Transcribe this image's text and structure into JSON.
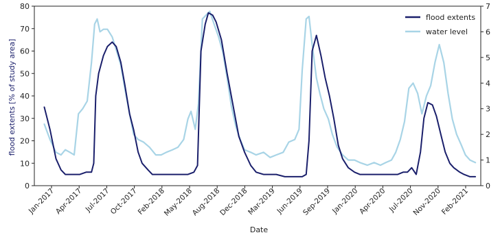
{
  "chart_data": {
    "type": "line",
    "xlabel": "Date",
    "ylabel_left": "flood extents [% of study area]",
    "ylabel_right": "",
    "ylim_left": [
      0,
      80
    ],
    "ylim_right": [
      0,
      7
    ],
    "yticks_left": [
      "0",
      "10",
      "20",
      "30",
      "40",
      "50",
      "60",
      "70",
      "80"
    ],
    "yticks_right": [
      "0",
      "1",
      "2",
      "3",
      "4",
      "5",
      "6",
      "7"
    ],
    "xticks": [
      "Jan-2017",
      "Apr-2017",
      "Jul-2017",
      "Oct-2017",
      "Feb-2018",
      "May-2018",
      "Aug-2018",
      "Dec-2018",
      "Mar-2019",
      "Jun-2019",
      "Sep-2019",
      "Jan-2020",
      "Apr-2020",
      "Jul-2020",
      "Nov-2020",
      "Feb-2021"
    ],
    "legend_position": "top-right",
    "colors": {
      "flood": "#1a1f6b",
      "water": "#a8d4e6",
      "axis": "#222222",
      "left_label": "#1a1f6b"
    },
    "series": [
      {
        "name": "flood extents",
        "axis": "left",
        "x": [
          "2017-01-05",
          "2017-01-25",
          "2017-02-15",
          "2017-03-05",
          "2017-03-20",
          "2017-04-05",
          "2017-04-20",
          "2017-05-10",
          "2017-06-01",
          "2017-06-20",
          "2017-06-28",
          "2017-07-05",
          "2017-07-15",
          "2017-08-01",
          "2017-08-15",
          "2017-09-01",
          "2017-09-15",
          "2017-10-01",
          "2017-10-15",
          "2017-11-01",
          "2017-11-15",
          "2017-12-01",
          "2017-12-15",
          "2018-01-05",
          "2018-01-20",
          "2018-02-10",
          "2018-03-01",
          "2018-03-20",
          "2018-04-10",
          "2018-05-01",
          "2018-05-25",
          "2018-06-15",
          "2018-06-28",
          "2018-07-10",
          "2018-07-25",
          "2018-08-05",
          "2018-08-20",
          "2018-09-01",
          "2018-09-20",
          "2018-10-10",
          "2018-11-01",
          "2018-11-20",
          "2018-12-10",
          "2019-01-01",
          "2019-01-20",
          "2019-02-15",
          "2019-03-10",
          "2019-04-01",
          "2019-05-01",
          "2019-06-01",
          "2019-07-01",
          "2019-07-15",
          "2019-07-25",
          "2019-08-05",
          "2019-08-20",
          "2019-09-05",
          "2019-09-20",
          "2019-10-05",
          "2019-10-20",
          "2019-11-05",
          "2019-11-20",
          "2019-12-10",
          "2020-01-01",
          "2020-01-20",
          "2020-02-15",
          "2020-03-10",
          "2020-04-01",
          "2020-05-01",
          "2020-06-01",
          "2020-06-20",
          "2020-07-05",
          "2020-07-20",
          "2020-08-05",
          "2020-08-20",
          "2020-09-01",
          "2020-09-15",
          "2020-10-01",
          "2020-10-15",
          "2020-11-01",
          "2020-11-15",
          "2020-12-01",
          "2020-12-15",
          "2021-01-05",
          "2021-01-20",
          "2021-02-10",
          "2021-03-01"
        ],
        "y": [
          35,
          25,
          12,
          7,
          5,
          5,
          5,
          5,
          6,
          6,
          10,
          40,
          50,
          58,
          62,
          64,
          62,
          55,
          45,
          32,
          25,
          15,
          10,
          7,
          5,
          5,
          5,
          5,
          5,
          5,
          5,
          6,
          9,
          60,
          72,
          77,
          76,
          73,
          65,
          50,
          35,
          22,
          15,
          9,
          6,
          5,
          5,
          5,
          4,
          4,
          4,
          5,
          20,
          60,
          67,
          58,
          48,
          40,
          30,
          18,
          12,
          8,
          6,
          5,
          5,
          5,
          5,
          5,
          5,
          6,
          6,
          8,
          5,
          15,
          30,
          37,
          36,
          31,
          22,
          15,
          10,
          8,
          6,
          5,
          4,
          4
        ]
      },
      {
        "name": "water level",
        "axis": "right",
        "x": [
          "2017-01-05",
          "2017-01-25",
          "2017-02-15",
          "2017-03-05",
          "2017-03-20",
          "2017-04-05",
          "2017-04-20",
          "2017-05-05",
          "2017-05-20",
          "2017-06-05",
          "2017-06-20",
          "2017-07-01",
          "2017-07-10",
          "2017-07-20",
          "2017-08-01",
          "2017-08-15",
          "2017-09-01",
          "2017-09-15",
          "2017-10-01",
          "2017-10-15",
          "2017-11-01",
          "2017-11-15",
          "2017-12-01",
          "2017-12-20",
          "2018-01-10",
          "2018-02-01",
          "2018-02-20",
          "2018-03-10",
          "2018-04-01",
          "2018-04-20",
          "2018-05-10",
          "2018-05-25",
          "2018-06-05",
          "2018-06-20",
          "2018-07-01",
          "2018-07-15",
          "2018-08-01",
          "2018-08-10",
          "2018-08-25",
          "2018-09-10",
          "2018-09-25",
          "2018-10-10",
          "2018-10-25",
          "2018-11-10",
          "2018-11-25",
          "2018-12-10",
          "2019-01-01",
          "2019-01-20",
          "2019-02-15",
          "2019-03-10",
          "2019-04-01",
          "2019-04-25",
          "2019-05-15",
          "2019-06-05",
          "2019-06-20",
          "2019-07-01",
          "2019-07-15",
          "2019-07-25",
          "2019-08-05",
          "2019-08-20",
          "2019-09-01",
          "2019-09-15",
          "2019-10-01",
          "2019-10-15",
          "2019-11-01",
          "2019-11-20",
          "2019-12-10",
          "2020-01-01",
          "2020-01-20",
          "2020-02-15",
          "2020-03-10",
          "2020-04-01",
          "2020-04-20",
          "2020-05-10",
          "2020-05-25",
          "2020-06-10",
          "2020-06-25",
          "2020-07-10",
          "2020-07-25",
          "2020-08-10",
          "2020-08-25",
          "2020-09-10",
          "2020-09-25",
          "2020-10-10",
          "2020-10-25",
          "2020-11-10",
          "2020-11-25",
          "2020-12-10",
          "2020-12-25",
          "2021-01-10",
          "2021-01-25",
          "2021-02-10",
          "2021-03-01"
        ],
        "y": [
          2.4,
          1.8,
          1.3,
          1.2,
          1.4,
          1.3,
          1.2,
          2.8,
          3.0,
          3.3,
          4.8,
          6.3,
          6.5,
          6.0,
          6.1,
          6.1,
          5.8,
          5.3,
          4.7,
          3.8,
          2.8,
          2.0,
          1.8,
          1.7,
          1.5,
          1.2,
          1.2,
          1.3,
          1.4,
          1.5,
          1.8,
          2.6,
          2.9,
          2.2,
          3.2,
          6.5,
          6.7,
          6.8,
          6.3,
          5.8,
          5.2,
          4.2,
          3.1,
          2.3,
          1.8,
          1.4,
          1.3,
          1.2,
          1.3,
          1.1,
          1.2,
          1.3,
          1.7,
          1.8,
          2.2,
          4.5,
          6.5,
          6.6,
          5.5,
          4.2,
          3.6,
          3.0,
          2.6,
          2.0,
          1.5,
          1.2,
          1.0,
          1.0,
          0.9,
          0.8,
          0.9,
          0.8,
          0.9,
          1.0,
          1.3,
          1.8,
          2.5,
          3.8,
          4.0,
          3.6,
          2.8,
          3.5,
          3.9,
          4.8,
          5.5,
          4.8,
          3.6,
          2.6,
          2.0,
          1.6,
          1.2,
          1.0,
          0.9
        ]
      }
    ]
  }
}
